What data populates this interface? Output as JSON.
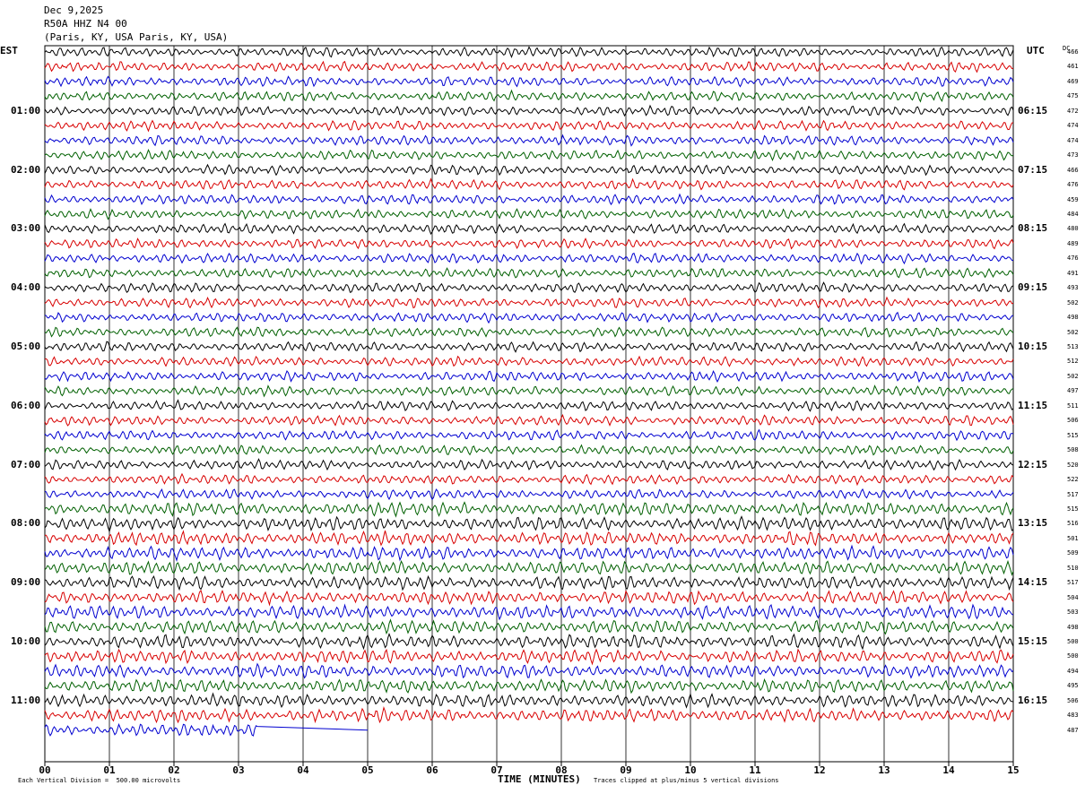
{
  "header": {
    "date": "Dec 9,2025",
    "station": "R50A HHZ N4 00",
    "location": "(Paris, KY, USA Paris, KY, USA)"
  },
  "left_timezone": "EST",
  "right_timezone": "UTC",
  "dc_label": "DC",
  "footer": {
    "scale": "Each Vertical Division =  500.00 microvolts",
    "clip": "Traces clipped at plus/minus 5 vertical divisions"
  },
  "colors": [
    "#000000",
    "#d80000",
    "#0000d0",
    "#006000"
  ],
  "chart_data": {
    "type": "line",
    "title": "",
    "xlabel": "TIME (MINUTES)",
    "xlim": [
      0,
      15
    ],
    "x_ticks": [
      "00",
      "01",
      "02",
      "03",
      "04",
      "05",
      "06",
      "07",
      "08",
      "09",
      "10",
      "11",
      "12",
      "13",
      "14",
      "15"
    ],
    "trace_count": 47,
    "last_trace_end_minute": 5,
    "left_hour_labels": [
      "01:00",
      "02:00",
      "03:00",
      "04:00",
      "05:00",
      "06:00",
      "07:00",
      "08:00",
      "09:00",
      "10:00",
      "11:00"
    ],
    "right_hour_labels": [
      "06:15",
      "07:15",
      "08:15",
      "09:15",
      "10:15",
      "11:15",
      "12:15",
      "13:15",
      "14:15",
      "15:15",
      "16:15"
    ],
    "dc_offsets": [
      "466",
      "461",
      "469",
      "475",
      "472",
      "474",
      "474",
      "473",
      "466",
      "476",
      "459",
      "484",
      "480",
      "489",
      "476",
      "491",
      "493",
      "502",
      "498",
      "502",
      "513",
      "512",
      "502",
      "497",
      "511",
      "506",
      "515",
      "508",
      "520",
      "522",
      "517",
      "515",
      "516",
      "501",
      "509",
      "510",
      "517",
      "504",
      "503",
      "498",
      "500",
      "500",
      "494",
      "495",
      "506",
      "483",
      "487"
    ]
  }
}
